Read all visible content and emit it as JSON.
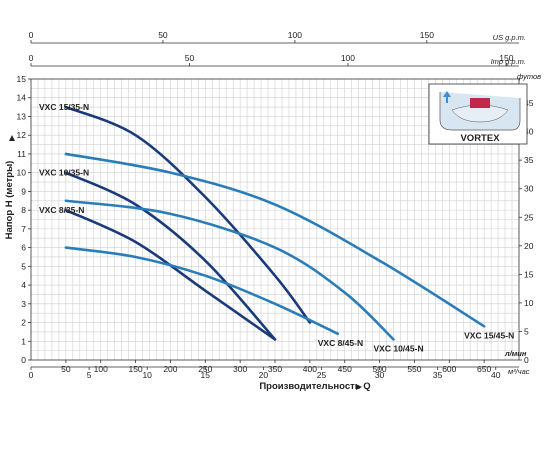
{
  "chart_data": {
    "type": "line",
    "grid": true,
    "xlabel": "Производительность Q",
    "ylabel": "Напор H (метры)",
    "right_axis_label": "футов",
    "inset_label": "VORTEX",
    "x_range_lmin": [
      0,
      700
    ],
    "y_range_m": [
      0,
      15
    ],
    "x_ticks_lmin": [
      50,
      100,
      150,
      200,
      250,
      300,
      350,
      400,
      450,
      500,
      550,
      600,
      650
    ],
    "x_tick_labels_lmin": [
      "50",
      "100",
      "150",
      "200",
      "250",
      "300",
      "350",
      "400",
      "450",
      "500",
      "550",
      "600",
      "650"
    ],
    "x_unit_lmin": "л/мин",
    "x_ticks_m3h": [
      0,
      5,
      10,
      15,
      20,
      25,
      30,
      35,
      40
    ],
    "x_tick_labels_m3h": [
      "0",
      "5",
      "10",
      "15",
      "20",
      "25",
      "30",
      "35",
      "40"
    ],
    "x_unit_m3h": "м³/час",
    "top_ticks_usgpm": [
      0,
      50,
      100,
      150
    ],
    "top_tick_labels_usgpm": [
      "0",
      "50",
      "100",
      "150"
    ],
    "top_unit_usgpm": "US g.p.m.",
    "top_ticks_impgpm": [
      0,
      50,
      100,
      150
    ],
    "top_tick_labels_impgpm": [
      "0",
      "50",
      "100",
      "150"
    ],
    "top_unit_impgpm": "Imp g.p.m.",
    "y_ticks_m": [
      0,
      1,
      2,
      3,
      4,
      5,
      6,
      7,
      8,
      9,
      10,
      11,
      12,
      13,
      14,
      15
    ],
    "y_tick_labels_m": [
      "0",
      "1",
      "2",
      "3",
      "4",
      "5",
      "6",
      "7",
      "8",
      "9",
      "10",
      "11",
      "12",
      "13",
      "14",
      "15"
    ],
    "y_ticks_ft": [
      0,
      5,
      10,
      15,
      20,
      25,
      30,
      35,
      40,
      45
    ],
    "y_tick_labels_ft": [
      "0",
      "5",
      "10",
      "15",
      "20",
      "25",
      "30",
      "35",
      "40",
      "45"
    ],
    "series": [
      {
        "name": "VXC 15/35-N",
        "color": "#1a3a7a",
        "x": [
          50,
          150,
          250,
          350,
          400
        ],
        "y": [
          13.5,
          12.0,
          8.7,
          4.5,
          2.0
        ]
      },
      {
        "name": "VXC 10/35-N",
        "color": "#1a3a7a",
        "x": [
          50,
          150,
          250,
          350
        ],
        "y": [
          10.0,
          8.3,
          5.3,
          1.1
        ]
      },
      {
        "name": "VXC 8/35-N",
        "color": "#1a3a7a",
        "x": [
          50,
          150,
          250,
          350
        ],
        "y": [
          8.0,
          6.3,
          3.7,
          1.1
        ]
      },
      {
        "name": "VXC 15/45-N",
        "color": "#2a7db8",
        "x": [
          50,
          200,
          350,
          500,
          650
        ],
        "y": [
          11.0,
          10.0,
          8.3,
          5.3,
          1.8
        ]
      },
      {
        "name": "VXC 10/45-N",
        "color": "#2a7db8",
        "x": [
          50,
          200,
          350,
          450,
          520
        ],
        "y": [
          8.5,
          7.8,
          6.0,
          3.6,
          1.1
        ]
      },
      {
        "name": "VXC 8/45-N",
        "color": "#2a7db8",
        "x": [
          50,
          150,
          250,
          350,
          440
        ],
        "y": [
          6.0,
          5.5,
          4.5,
          3.0,
          1.4
        ]
      }
    ]
  }
}
